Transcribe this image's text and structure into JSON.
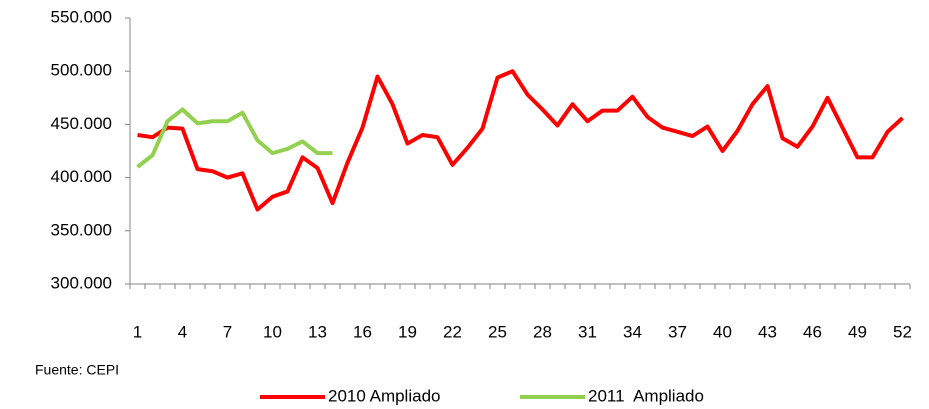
{
  "chart_data": {
    "type": "line",
    "categories": [
      "1",
      null,
      null,
      "4",
      null,
      null,
      "7",
      null,
      null,
      "10",
      null,
      null,
      "13",
      null,
      null,
      "16",
      null,
      null,
      "19",
      null,
      null,
      "22",
      null,
      null,
      "25",
      null,
      null,
      "28",
      null,
      null,
      "31",
      null,
      null,
      "34",
      null,
      null,
      "37",
      null,
      null,
      "40",
      null,
      null,
      "43",
      null,
      null,
      "46",
      null,
      null,
      "49",
      null,
      null,
      "52"
    ],
    "series": [
      {
        "name": "2010 Ampliado",
        "color": "#ff0000",
        "values": [
          440000,
          438000,
          447000,
          446000,
          408000,
          406000,
          400000,
          404000,
          370000,
          382000,
          387000,
          419000,
          409000,
          376000,
          414000,
          447000,
          495000,
          469000,
          432000,
          440000,
          438000,
          412000,
          428000,
          446000,
          494000,
          500000,
          478000,
          464000,
          449000,
          469000,
          453000,
          463000,
          463000,
          476000,
          457000,
          447000,
          443000,
          439000,
          448000,
          425000,
          444000,
          469000,
          486000,
          437000,
          429000,
          448000,
          475000,
          447000,
          419000,
          419000,
          443000,
          456000
        ]
      },
      {
        "name": "2011  Ampliado",
        "color": "#92d050",
        "values": [
          410000,
          421000,
          453000,
          464000,
          451000,
          453000,
          453000,
          461000,
          435000,
          423000,
          427000,
          434000,
          423000,
          423000,
          null,
          null,
          null,
          null,
          null,
          null,
          null,
          null,
          null,
          null,
          null,
          null,
          null,
          null,
          null,
          null,
          null,
          null,
          null,
          null,
          null,
          null,
          null,
          null,
          null,
          null,
          null,
          null,
          null,
          null,
          null,
          null,
          null,
          null,
          null,
          null,
          null,
          null
        ]
      }
    ],
    "ylim": [
      300000,
      550000
    ],
    "yticks": [
      {
        "value": 300000,
        "label": "300.000"
      },
      {
        "value": 350000,
        "label": "350.000"
      },
      {
        "value": 400000,
        "label": "400.000"
      },
      {
        "value": 450000,
        "label": "450.000"
      },
      {
        "value": 500000,
        "label": "500.000"
      },
      {
        "value": 550000,
        "label": "550.000"
      }
    ],
    "annotation": "Fuente: CEPI",
    "legend": "bottom"
  }
}
